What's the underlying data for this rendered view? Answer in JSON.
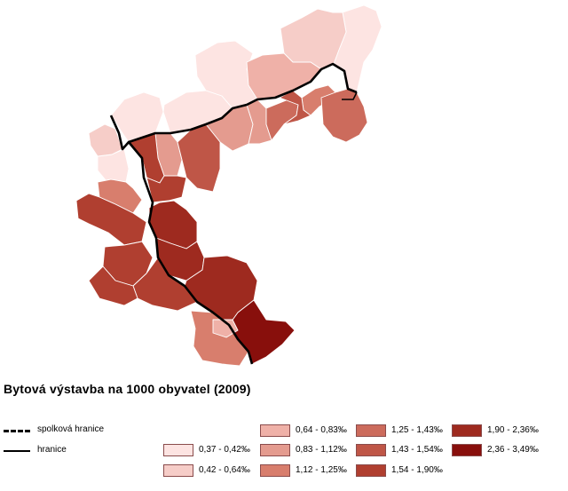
{
  "map": {
    "title": "Bytová výstavba na 1000 obyvatel (2009)",
    "borders": [
      {
        "id": "state",
        "label": "spolková hranice",
        "style": "dashed"
      },
      {
        "id": "country",
        "label": "hranice",
        "style": "solid"
      }
    ],
    "classes": [
      {
        "label": "0,37 - 0,42‰",
        "color": "#fde4e2"
      },
      {
        "label": "0,42 - 0,64‰",
        "color": "#f6cdc8"
      },
      {
        "label": "0,64 - 0,83‰",
        "color": "#efb1a8"
      },
      {
        "label": "0,83 - 1,12‰",
        "color": "#e49b8f"
      },
      {
        "label": "1,12 - 1,25‰",
        "color": "#d87e6d"
      },
      {
        "label": "1,25 - 1,43‰",
        "color": "#cc6b5c"
      },
      {
        "label": "1,43 - 1,54‰",
        "color": "#bf5647"
      },
      {
        "label": "1,54 - 1,90‰",
        "color": "#b03f30"
      },
      {
        "label": "1,90 - 2,36‰",
        "color": "#9e2a1f"
      },
      {
        "label": "2,36 - 3,49‰",
        "color": "#880f0c"
      }
    ]
  }
}
